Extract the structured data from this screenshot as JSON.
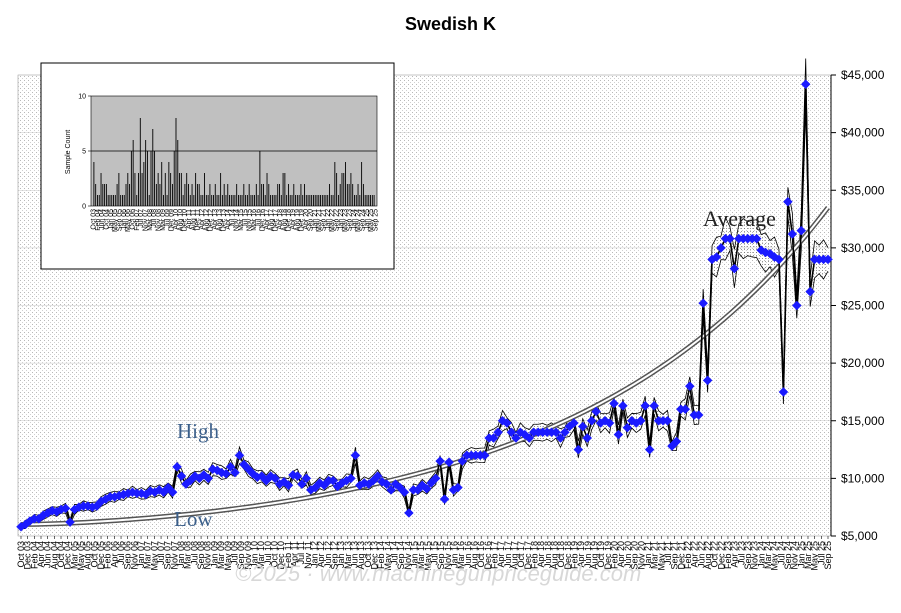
{
  "title": "Swedish K",
  "watermark": "©2025 · www.machinegunpriceguide.com",
  "colors": {
    "marker": "#1a1aff",
    "avg_line": "#000000",
    "band": "#000000",
    "annotation": "#3b5f8a",
    "grid_bg": "#f4f4f4",
    "inset_bg": "#c0c0c0"
  },
  "chart_data": [
    {
      "type": "line",
      "title": "Swedish K",
      "ylim": [
        5000,
        45000
      ],
      "y_ticks": [
        "$5,000",
        "$10,000",
        "$15,000",
        "$20,000",
        "$25,000",
        "$30,000",
        "$35,000",
        "$40,000",
        "$45,000"
      ],
      "y_tick_values": [
        5000,
        10000,
        15000,
        20000,
        25000,
        30000,
        35000,
        40000,
        45000
      ],
      "x_ticks": [
        "Oct 03",
        "Dec 03",
        "Feb 04",
        "Apr 04",
        "Jun 04",
        "Aug 04",
        "Oct 04",
        "Dec 04",
        "Mar 05",
        "May 05",
        "Aug 05",
        "Oct 05",
        "Dec 05",
        "Feb 06",
        "Apr 06",
        "Jul 06",
        "Sep 06",
        "Nov 06",
        "Jan 07",
        "Mar 07",
        "May 07",
        "Jul 07",
        "Sep 07",
        "Nov 07",
        "Jan 08",
        "Mar 08",
        "Jul 08",
        "Sep 08",
        "Nov 08",
        "Jan 09",
        "Mar 09",
        "May 09",
        "Jul 09",
        "Sep 09",
        "Nov 09",
        "Jan 10",
        "Mar 10",
        "Jul 10",
        "Oct 10",
        "Dec 10",
        "Feb 11",
        "Apr 11",
        "Jul 11",
        "Nov 11",
        "Jan 12",
        "Apr 12",
        "Jun 12",
        "Sep 12",
        "Jan 13",
        "Mar 13",
        "Jun 13",
        "Aug 13",
        "Oct 13",
        "Dec 13",
        "Feb 14",
        "May 14",
        "Jul 14",
        "Sep 14",
        "Nov 14",
        "Jan 15",
        "Mar 15",
        "May 15",
        "Jul 15",
        "Sep 15",
        "Nov 15",
        "Jan 16",
        "Mar 16",
        "Jun 16",
        "Aug 16",
        "Oct 16",
        "Dec 16",
        "Feb 17",
        "Apr 17",
        "Jun 17",
        "Aug 17",
        "Oct 17",
        "Dec 17",
        "Feb 18",
        "Apr 18",
        "Jun 18",
        "Aug 18",
        "Oct 18",
        "Dec 18",
        "Feb 19",
        "Apr 19",
        "Jun 19",
        "Aug 19",
        "Oct 19",
        "Dec 19",
        "Feb 20",
        "Apr 20",
        "Jun 20",
        "Sep 20",
        "Nov 20",
        "Jan 21",
        "Mar 21",
        "May 21",
        "Jul 21",
        "Sep 21",
        "Dec 21",
        "Feb 22",
        "Apr 22",
        "Jun 22",
        "Aug 22",
        "Oct 22",
        "Dec 22",
        "Feb 23",
        "Apr 23",
        "Jul 23",
        "Sep 23",
        "Nov 23",
        "Jan 24",
        "Mar 24",
        "May 24",
        "Jul 24",
        "Sep 24",
        "Nov 24",
        "Jan 25",
        "Mar 25",
        "May 25",
        "Jul 25",
        "Sep 25"
      ],
      "series": [
        {
          "role": "average",
          "y": [
            5800,
            6000,
            6300,
            6500,
            6500,
            6800,
            7000,
            7200,
            7100,
            7300,
            7400,
            6200,
            7300,
            7500,
            7600,
            7600,
            7500,
            7600,
            8000,
            8200,
            8400,
            8400,
            8500,
            8600,
            8700,
            8800,
            8700,
            8700,
            8600,
            8900,
            8800,
            9000,
            8800,
            9200,
            8800,
            11000,
            10200,
            9500,
            9800,
            10200,
            10000,
            10300,
            10000,
            10800,
            10700,
            10500,
            10400,
            11000,
            10500,
            12000,
            11200,
            10800,
            10400,
            10100,
            10200,
            9800,
            10200,
            10000,
            9500,
            9700,
            9400,
            10300,
            10200,
            9500,
            10000,
            9000,
            9200,
            9600,
            9400,
            9800,
            9800,
            9300,
            9600,
            9800,
            10000,
            12000,
            9400,
            9600,
            9500,
            9800,
            10200,
            9700,
            9500,
            9000,
            9500,
            9200,
            8800,
            7000,
            9000,
            9000,
            9400,
            9100,
            9600,
            10000,
            11500,
            8200,
            11400,
            9000,
            9200,
            11500,
            12000,
            12000,
            12000,
            12000,
            12000,
            13500,
            13500,
            14000,
            15000,
            14800,
            14000,
            13500,
            14000,
            13800,
            13500,
            14000,
            14000,
            14000,
            14000,
            14000,
            14000,
            13500,
            14000,
            14500,
            14800,
            12500,
            14500,
            13500,
            15000,
            15800,
            14800,
            15000,
            14800,
            16500,
            13800,
            16300,
            14400,
            15000,
            14800,
            15000,
            16300,
            12500,
            16300,
            15000,
            15000,
            15000,
            12800,
            13200,
            16000,
            16000,
            18000,
            15500,
            15500,
            25200,
            18500,
            29000,
            29200,
            30000,
            30800,
            30800,
            28200,
            30800,
            30800,
            30800,
            30800,
            30800,
            29800,
            29600,
            29500,
            29200,
            29000,
            17500,
            34000,
            31200,
            25000,
            31500,
            44200,
            26200,
            29000,
            29000,
            29000,
            29000
          ]
        },
        {
          "role": "trend",
          "y_start": 6000,
          "y_end": 33500
        }
      ],
      "annotations": [
        "High",
        "Low",
        "Average"
      ]
    },
    {
      "type": "bar",
      "ylabel": "Sample Count",
      "ylim": [
        0,
        10
      ],
      "y_ticks": [
        "0",
        "5",
        "10"
      ],
      "reference_line": 5,
      "x_ticks": [
        "Oct 03",
        "Feb 04",
        "Jun 04",
        "Oct 04",
        "Jan 05",
        "May 05",
        "Sep 05",
        "Jan 06",
        "May 06",
        "Oct 06",
        "Feb 07",
        "Jul 07",
        "Nov 07",
        "Mar 08",
        "Jul 08",
        "Nov 08",
        "Mar 09",
        "Jul 09",
        "Dec 09",
        "Apr 10",
        "Aug 10",
        "Dec 10",
        "Apr 11",
        "Aug 11",
        "Dec 11",
        "Apr 12",
        "Aug 12",
        "Dec 12",
        "Apr 13",
        "Aug 13",
        "Dec 13",
        "Apr 14",
        "Jul 14",
        "Nov 14",
        "Mar 15",
        "Jul 15",
        "Nov 15",
        "Mar 16",
        "Jul 16",
        "Dec 16",
        "Apr 17",
        "Aug 17",
        "Dec 17",
        "Apr 18",
        "Aug 18",
        "Dec 18",
        "Apr 19",
        "Aug 19",
        "Dec 19",
        "Apr 20",
        "Sep 20",
        "Jan 21",
        "May 21",
        "Sep 21",
        "Jan 22",
        "May 22",
        "Sep 22",
        "Jan 23",
        "May 23",
        "Sep 23",
        "Jan 24",
        "May 24",
        "Sep 24",
        "Jan 25",
        "May 25",
        "Sep 25"
      ],
      "values": [
        4,
        2,
        1,
        1,
        3,
        2,
        2,
        2,
        1,
        1,
        1,
        1,
        1,
        2,
        3,
        1,
        1,
        1,
        2,
        3,
        2,
        5,
        6,
        3,
        1,
        3,
        8,
        3,
        4,
        6,
        5,
        1,
        5,
        7,
        5,
        2,
        3,
        2,
        4,
        1,
        3,
        1,
        4,
        3,
        2,
        5,
        8,
        6,
        3,
        3,
        1,
        2,
        3,
        2,
        1,
        2,
        1,
        3,
        2,
        2,
        1,
        1,
        3,
        1,
        1,
        2,
        1,
        1,
        2,
        1,
        1,
        3,
        1,
        2,
        1,
        2,
        1,
        1,
        1,
        1,
        2,
        1,
        1,
        1,
        2,
        1,
        1,
        2,
        1,
        1,
        1,
        2,
        1,
        5,
        2,
        2,
        1,
        3,
        2,
        1,
        1,
        1,
        1,
        2,
        2,
        1,
        3,
        3,
        1,
        2,
        1,
        1,
        2,
        1,
        1,
        1,
        2,
        1,
        2,
        1,
        1,
        1,
        1,
        1,
        1,
        1,
        1,
        1,
        1,
        1,
        1,
        1,
        2,
        1,
        1,
        4,
        3,
        1,
        2,
        3,
        3,
        4,
        2,
        2,
        3,
        2,
        1,
        1,
        2,
        1,
        4,
        2,
        1,
        1,
        1,
        1,
        1,
        1
      ]
    }
  ]
}
